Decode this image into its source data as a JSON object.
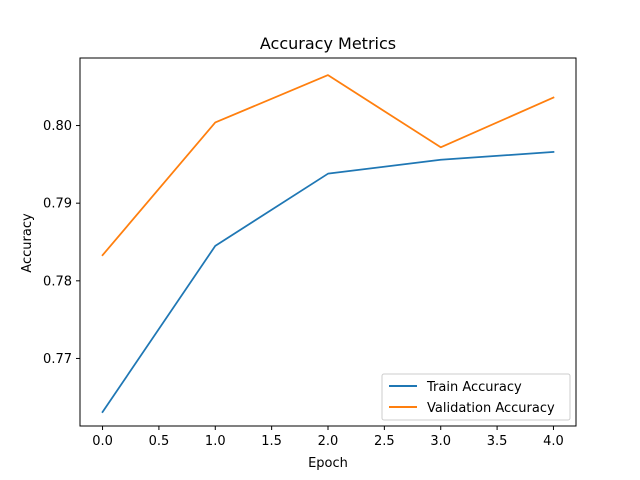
{
  "chart_data": {
    "type": "line",
    "title": "Accuracy Metrics",
    "xlabel": "Epoch",
    "ylabel": "Accuracy",
    "x": [
      0,
      1,
      2,
      3,
      4
    ],
    "xlim": [
      -0.2,
      4.2
    ],
    "ylim": [
      0.7613,
      0.8087
    ],
    "xticks": [
      0.0,
      0.5,
      1.0,
      1.5,
      2.0,
      2.5,
      3.0,
      3.5,
      4.0
    ],
    "xtick_labels": [
      "0.0",
      "0.5",
      "1.0",
      "1.5",
      "2.0",
      "2.5",
      "3.0",
      "3.5",
      "4.0"
    ],
    "yticks": [
      0.77,
      0.78,
      0.79,
      0.8
    ],
    "ytick_labels": [
      "0.77",
      "0.78",
      "0.79",
      "0.80"
    ],
    "grid": false,
    "legend_position": "lower-right",
    "series": [
      {
        "name": "Train Accuracy",
        "color": "#1f77b4",
        "values": [
          0.7631,
          0.7845,
          0.7938,
          0.7956,
          0.7966
        ]
      },
      {
        "name": "Validation Accuracy",
        "color": "#ff7f0e",
        "values": [
          0.7833,
          0.8004,
          0.8065,
          0.7972,
          0.8036
        ]
      }
    ]
  }
}
